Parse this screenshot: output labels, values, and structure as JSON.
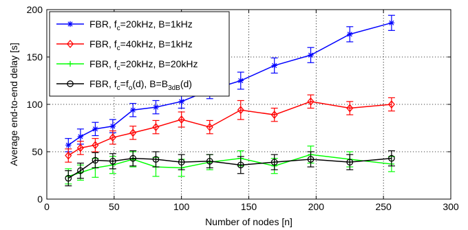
{
  "chart_data": {
    "type": "line",
    "xlabel": "Number of nodes [n]",
    "ylabel": "Average end-to-end delay [s]",
    "xlim": [
      0,
      300
    ],
    "ylim": [
      0,
      200
    ],
    "xticks": [
      0,
      50,
      100,
      150,
      200,
      250,
      300
    ],
    "yticks": [
      0,
      50,
      100,
      150,
      200
    ],
    "x_tick_labels": [
      "0",
      "50",
      "100",
      "150",
      "200",
      "250",
      "300"
    ],
    "y_tick_labels": [
      "0",
      "50",
      "100",
      "150",
      "200"
    ],
    "grid": "dotted",
    "legend_position": "top-left",
    "series": [
      {
        "legend": {
          "pre": "FBR, f",
          "sub1": "c",
          "mid": "=20kHz, B=1kHz",
          "sub2": "",
          "post": ""
        },
        "color": "#0000ff",
        "marker": "star",
        "x": [
          16,
          25,
          36,
          49,
          64,
          81,
          100,
          121,
          144,
          169,
          196,
          225,
          256
        ],
        "y": [
          57,
          66,
          74,
          77,
          94,
          97,
          103,
          115,
          125,
          141,
          152,
          174,
          186
        ],
        "err": [
          7,
          8,
          7,
          7,
          7,
          7,
          7,
          9,
          9,
          8,
          8,
          8,
          8
        ]
      },
      {
        "legend": {
          "pre": "FBR, f",
          "sub1": "c",
          "mid": "=40kHz, B=1kHz",
          "sub2": "",
          "post": ""
        },
        "color": "#ff0000",
        "marker": "diamond",
        "x": [
          16,
          25,
          36,
          49,
          64,
          81,
          100,
          121,
          144,
          169,
          196,
          225,
          256
        ],
        "y": [
          46,
          54,
          57,
          65,
          70,
          76,
          84,
          76,
          94,
          89,
          103,
          96,
          100
        ],
        "err": [
          7,
          7,
          7,
          7,
          7,
          7,
          8,
          7,
          10,
          7,
          7,
          7,
          7
        ]
      },
      {
        "legend": {
          "pre": "FBR, f",
          "sub1": "c",
          "mid": "=20kHz, B=20kHz",
          "sub2": "",
          "post": ""
        },
        "color": "#00ff00",
        "marker": "plus",
        "x": [
          16,
          25,
          36,
          49,
          64,
          81,
          100,
          121,
          144,
          169,
          196,
          225,
          256
        ],
        "y": [
          24,
          28,
          33,
          36,
          42,
          34,
          33,
          39,
          43,
          35,
          47,
          42,
          37
        ],
        "err": [
          8,
          8,
          10,
          9,
          8,
          10,
          9,
          8,
          8,
          8,
          9,
          8,
          8
        ]
      },
      {
        "legend": {
          "pre": "FBR, f",
          "sub1": "c",
          "mid": "=f",
          "sub2": "o",
          "post": "(d), B=B",
          "sub3": "3dB",
          "post2": "(d)"
        },
        "color": "#000000",
        "marker": "circle",
        "x": [
          16,
          25,
          36,
          49,
          64,
          81,
          100,
          121,
          144,
          169,
          196,
          225,
          256
        ],
        "y": [
          22,
          30,
          41,
          40,
          43,
          42,
          39,
          40,
          36,
          39,
          42,
          39,
          43
        ],
        "err": [
          8,
          8,
          8,
          8,
          8,
          8,
          8,
          7,
          9,
          8,
          8,
          8,
          8
        ]
      }
    ]
  }
}
